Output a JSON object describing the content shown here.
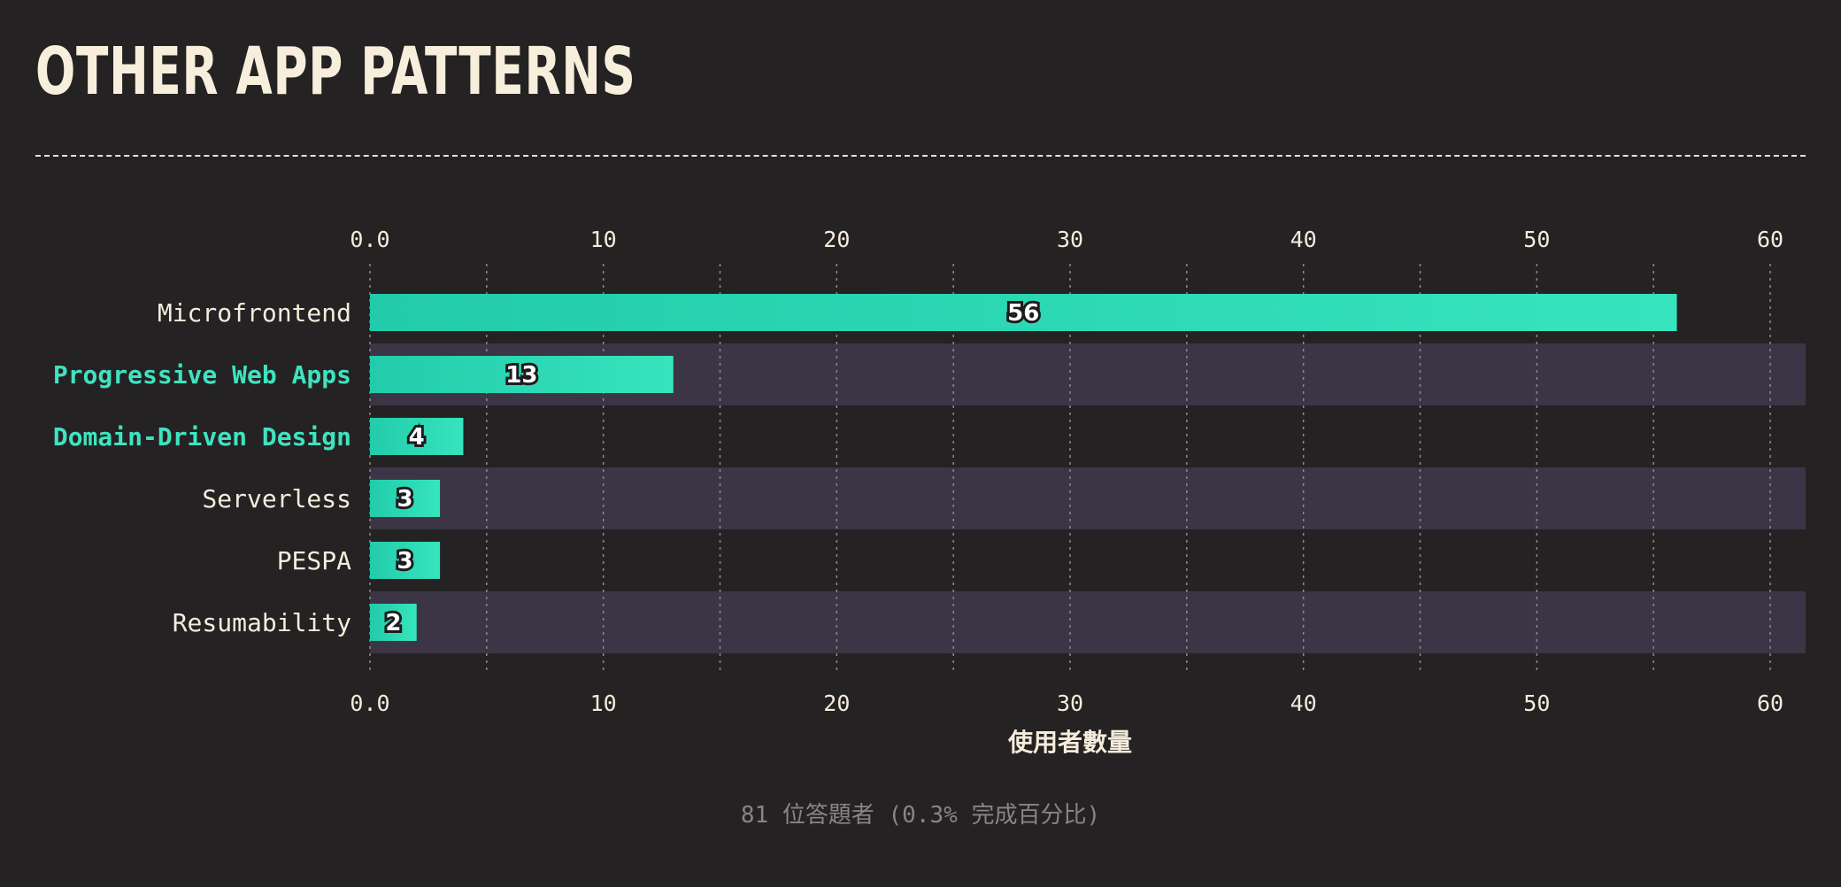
{
  "header": {
    "title": "OTHER APP PATTERNS"
  },
  "footer": {
    "respondents": "81 位答題者 (0.3% 完成百分比)"
  },
  "colors": {
    "background": "#252223",
    "bar_start": "#22ccab",
    "bar_end": "#36e4bd",
    "highlight_text": "#3fe3c0",
    "band": "#3b3546",
    "grid": "#8d8a8f"
  },
  "chart_data": {
    "type": "bar",
    "orientation": "horizontal",
    "categories": [
      "Microfrontend",
      "Progressive Web Apps",
      "Domain-Driven Design",
      "Serverless",
      "PESPA",
      "Resumability"
    ],
    "highlighted": [
      "Progressive Web Apps",
      "Domain-Driven Design"
    ],
    "values": [
      56,
      13,
      4,
      3,
      3,
      2
    ],
    "xlabel": "使用者數量",
    "xlim": [
      0,
      62
    ],
    "ticks": [
      0,
      10,
      20,
      30,
      40,
      50,
      60
    ],
    "tick_labels": [
      "0.0",
      "10",
      "20",
      "30",
      "40",
      "50",
      "60"
    ],
    "minor_grid_step": 5,
    "axis_position": "top-and-bottom",
    "grid": true
  }
}
